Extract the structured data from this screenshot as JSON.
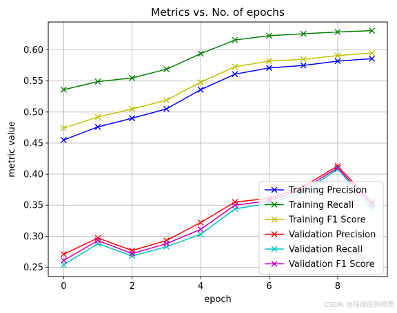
{
  "chart_data": {
    "type": "line",
    "title": "Metrics vs. No. of epochs",
    "xlabel": "epoch",
    "ylabel": "metric value",
    "x": [
      0,
      1,
      2,
      3,
      4,
      5,
      6,
      7,
      8,
      9
    ],
    "xlim": [
      -0.45,
      9.45
    ],
    "ylim": [
      0.235,
      0.645
    ],
    "xticks": [
      0,
      2,
      4,
      6,
      8
    ],
    "yticks": [
      0.25,
      0.3,
      0.35,
      0.4,
      0.45,
      0.5,
      0.55,
      0.6
    ],
    "grid": true,
    "legend_position": "lower-right",
    "marker": "x",
    "series": [
      {
        "name": "Training Precision",
        "color": "#0000ff",
        "values": [
          0.455,
          0.476,
          0.49,
          0.505,
          0.536,
          0.561,
          0.571,
          0.575,
          0.582,
          0.586
        ]
      },
      {
        "name": "Training Recall",
        "color": "#008000",
        "values": [
          0.536,
          0.549,
          0.555,
          0.569,
          0.594,
          0.616,
          0.623,
          0.626,
          0.629,
          0.631
        ]
      },
      {
        "name": "Training F1 Score",
        "color": "#bfbf00",
        "values": [
          0.474,
          0.492,
          0.505,
          0.519,
          0.548,
          0.573,
          0.582,
          0.585,
          0.591,
          0.595
        ]
      },
      {
        "name": "Validation Precision",
        "color": "#ff0000",
        "values": [
          0.271,
          0.297,
          0.277,
          0.293,
          0.322,
          0.355,
          0.361,
          0.38,
          0.413,
          0.355
        ]
      },
      {
        "name": "Validation Recall",
        "color": "#00bfbf",
        "values": [
          0.254,
          0.288,
          0.268,
          0.283,
          0.303,
          0.344,
          0.353,
          0.371,
          0.408,
          0.346
        ]
      },
      {
        "name": "Validation F1 Score",
        "color": "#bf00bf",
        "values": [
          0.261,
          0.293,
          0.272,
          0.288,
          0.311,
          0.35,
          0.357,
          0.376,
          0.41,
          0.351
        ]
      }
    ]
  },
  "watermark": "CSDN @陈晨辰熟稳重"
}
